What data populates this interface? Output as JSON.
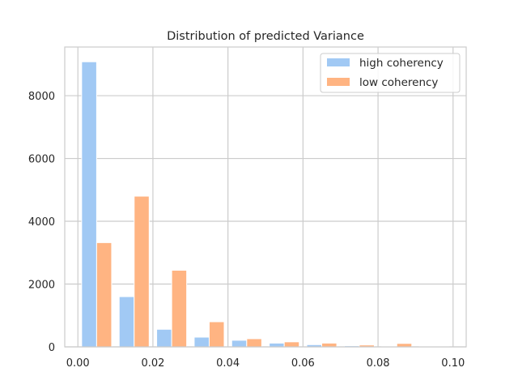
{
  "chart_data": {
    "type": "bar",
    "title": "Distribution of predicted Variance",
    "xlabel": "",
    "ylabel": "",
    "xlim": [
      -0.0035,
      0.1035
    ],
    "ylim": [
      0,
      9550
    ],
    "x_ticks": [
      0.0,
      0.02,
      0.04,
      0.06,
      0.08,
      0.1
    ],
    "x_tick_labels": [
      "0.00",
      "0.02",
      "0.04",
      "0.06",
      "0.08",
      "0.10"
    ],
    "y_ticks": [
      0,
      2000,
      4000,
      6000,
      8000
    ],
    "y_tick_labels": [
      "0",
      "2000",
      "4000",
      "6000",
      "8000"
    ],
    "grid": true,
    "legend_position": "top-right",
    "bin_edges": [
      0.0,
      0.01,
      0.02,
      0.03,
      0.04,
      0.05,
      0.06,
      0.07,
      0.08,
      0.09,
      0.1
    ],
    "series": [
      {
        "name": "high coherency",
        "color": "#a1c9f4",
        "values": [
          9080,
          1600,
          560,
          310,
          210,
          120,
          70,
          35,
          25,
          15
        ]
      },
      {
        "name": "low coherency",
        "color": "#ffb482",
        "values": [
          3320,
          4800,
          2440,
          800,
          260,
          160,
          120,
          60,
          110,
          20
        ]
      }
    ]
  }
}
